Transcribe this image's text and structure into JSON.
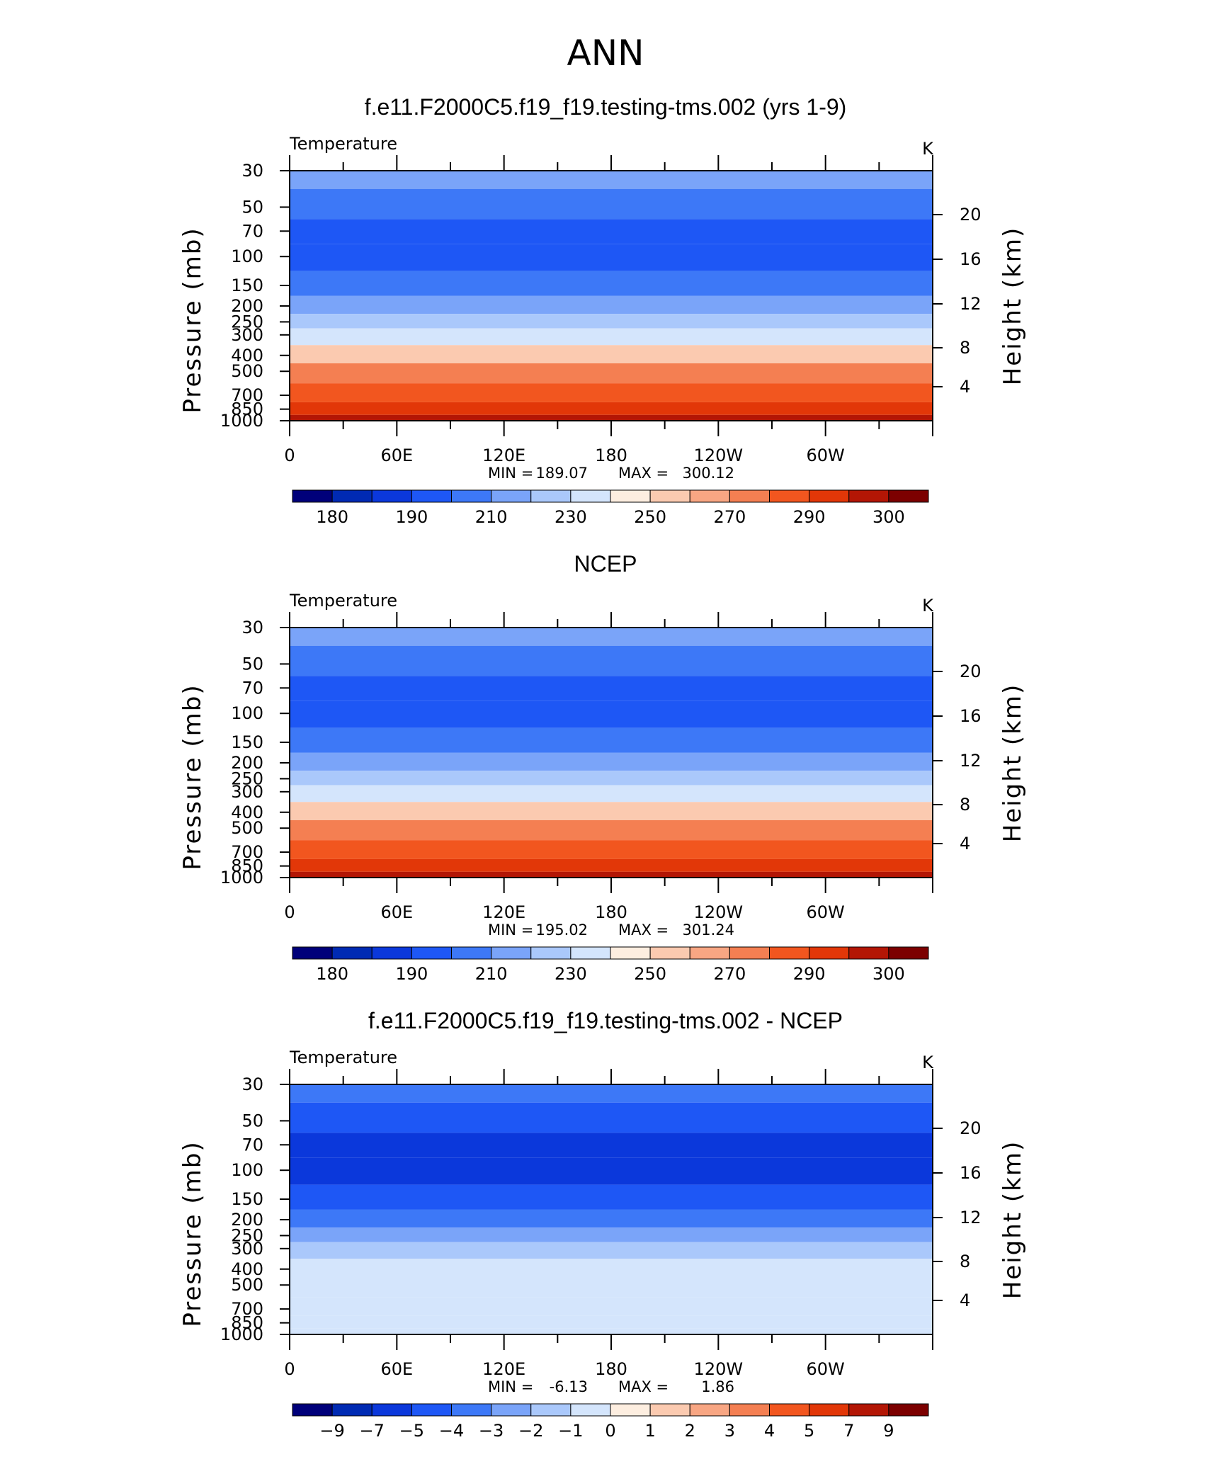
{
  "title": "ANN",
  "colors": {
    "temp_scale": [
      "#00007a",
      "#002ab3",
      "#0b38db",
      "#1e57f5",
      "#3d78f7",
      "#7aa4f9",
      "#aac8fb",
      "#d4e5fc",
      "#fdeee0",
      "#fbcab0",
      "#f8a683",
      "#f47f52",
      "#f2561f",
      "#e23708",
      "#b31605",
      "#7c0000"
    ],
    "diff_scale": [
      "#00007a",
      "#002ab3",
      "#0b38db",
      "#1e57f5",
      "#3d78f7",
      "#7aa4f9",
      "#aac8fb",
      "#d4e5fc",
      "#fdeee0",
      "#fbcab0",
      "#f8a683",
      "#f47f52",
      "#f2561f",
      "#e23708",
      "#b31605",
      "#7c0000"
    ]
  },
  "chart_data": [
    {
      "type": "heatmap",
      "title": "f.e11.F2000C5.f19_f19.testing-tms.002 (yrs 1-9)",
      "subtitle_left": "Temperature",
      "units": "K",
      "ylabel": "Pressure  (mb)",
      "ylabel_right": "Height  (km)",
      "y_scale": "log",
      "y_ticks": [
        "30",
        "50",
        "70",
        "100",
        "150",
        "200",
        "250",
        "300",
        "400",
        "500",
        "700",
        "850",
        "1000"
      ],
      "y_right_ticks": [
        "20",
        "16",
        "12",
        "8",
        "4"
      ],
      "x_ticks": [
        "0",
        "60E",
        "120E",
        "180",
        "120W",
        "60W"
      ],
      "stats": {
        "min_label": "MIN =",
        "min": "189.07",
        "max_label": "MAX =",
        "max": "300.12"
      },
      "colorbar_labels": [
        "180",
        "190",
        "210",
        "230",
        "250",
        "270",
        "290",
        "300"
      ],
      "pressure_levels": [
        30,
        50,
        70,
        100,
        150,
        200,
        250,
        300,
        400,
        500,
        700,
        850,
        1000
      ],
      "level_class": [
        5,
        4,
        3,
        3,
        4,
        5,
        6,
        7,
        9,
        11,
        12,
        13,
        14
      ]
    },
    {
      "type": "heatmap",
      "title": "NCEP",
      "subtitle_left": "Temperature",
      "units": "K",
      "ylabel": "Pressure  (mb)",
      "ylabel_right": "Height  (km)",
      "y_scale": "log",
      "y_ticks": [
        "30",
        "50",
        "70",
        "100",
        "150",
        "200",
        "250",
        "300",
        "400",
        "500",
        "700",
        "850",
        "1000"
      ],
      "y_right_ticks": [
        "20",
        "16",
        "12",
        "8",
        "4"
      ],
      "x_ticks": [
        "0",
        "60E",
        "120E",
        "180",
        "120W",
        "60W"
      ],
      "stats": {
        "min_label": "MIN =",
        "min": "195.02",
        "max_label": "MAX =",
        "max": "301.24"
      },
      "colorbar_labels": [
        "180",
        "190",
        "210",
        "230",
        "250",
        "270",
        "290",
        "300"
      ],
      "pressure_levels": [
        30,
        50,
        70,
        100,
        150,
        200,
        250,
        300,
        400,
        500,
        700,
        850,
        1000
      ],
      "level_class": [
        5,
        4,
        3,
        3,
        4,
        5,
        6,
        7,
        9,
        11,
        12,
        13,
        14
      ]
    },
    {
      "type": "heatmap",
      "title": "f.e11.F2000C5.f19_f19.testing-tms.002 - NCEP",
      "subtitle_left": "Temperature",
      "units": "K",
      "ylabel": "Pressure  (mb)",
      "ylabel_right": "Height  (km)",
      "y_scale": "log",
      "y_ticks": [
        "30",
        "50",
        "70",
        "100",
        "150",
        "200",
        "250",
        "300",
        "400",
        "500",
        "700",
        "850",
        "1000"
      ],
      "y_right_ticks": [
        "20",
        "16",
        "12",
        "8",
        "4"
      ],
      "x_ticks": [
        "0",
        "60E",
        "120E",
        "180",
        "120W",
        "60W"
      ],
      "stats": {
        "min_label": "MIN =",
        "min": "-6.13",
        "max_label": "MAX =",
        "max": "1.86"
      },
      "colorbar_labels": [
        "−9",
        "−7",
        "−5",
        "−4",
        "−3",
        "−2",
        "−1",
        "0",
        "1",
        "2",
        "3",
        "4",
        "5",
        "7",
        "9"
      ],
      "pressure_levels": [
        30,
        50,
        70,
        100,
        150,
        200,
        250,
        300,
        400,
        500,
        700,
        850,
        1000
      ],
      "level_class": [
        4,
        3,
        2,
        2,
        3,
        4,
        5,
        6,
        7,
        7,
        7,
        7,
        7
      ]
    }
  ]
}
